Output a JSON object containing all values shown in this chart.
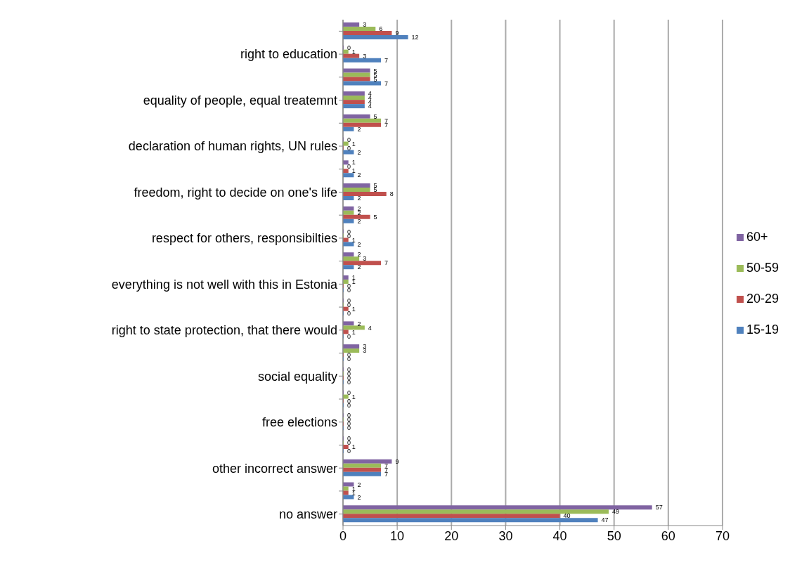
{
  "chart_data": {
    "type": "bar",
    "orientation": "horizontal",
    "categories": [
      null,
      "right to education",
      null,
      "equality of people, equal treatemnt",
      null,
      "declaration of human rights, UN rules",
      null,
      "freedom, right to decide on one's life",
      null,
      "respect for others, responsibilties",
      null,
      "everything is not well with this in Estonia",
      null,
      "right to state protection, that there would",
      null,
      "social equality",
      null,
      "free elections",
      null,
      "other incorrect answer",
      null,
      "no answer"
    ],
    "series": [
      {
        "name": "60+",
        "color": "#8064a2",
        "values": [
          3,
          0,
          5,
          4,
          5,
          0,
          1,
          5,
          2,
          0,
          2,
          1,
          0,
          2,
          3,
          0,
          0,
          0,
          0,
          9,
          2,
          57
        ]
      },
      {
        "name": "50-59",
        "color": "#9bbb59",
        "values": [
          6,
          1,
          5,
          4,
          7,
          1,
          0,
          5,
          2,
          0,
          3,
          1,
          0,
          4,
          3,
          0,
          1,
          0,
          0,
          7,
          1,
          49
        ]
      },
      {
        "name": "20-29",
        "color": "#c0504d",
        "values": [
          9,
          3,
          5,
          4,
          7,
          0,
          1,
          8,
          5,
          1,
          7,
          0,
          1,
          1,
          0,
          0,
          0,
          0,
          1,
          7,
          1,
          40
        ]
      },
      {
        "name": "15-19",
        "color": "#4f81bd",
        "values": [
          12,
          7,
          7,
          4,
          2,
          2,
          2,
          2,
          2,
          2,
          2,
          0,
          0,
          0,
          0,
          0,
          0,
          0,
          0,
          7,
          2,
          47
        ]
      }
    ],
    "xlim": [
      0,
      70
    ],
    "xticks": [
      0,
      10,
      20,
      30,
      40,
      50,
      60,
      70
    ],
    "grid": "x",
    "legend": "right",
    "data_labels": true
  }
}
